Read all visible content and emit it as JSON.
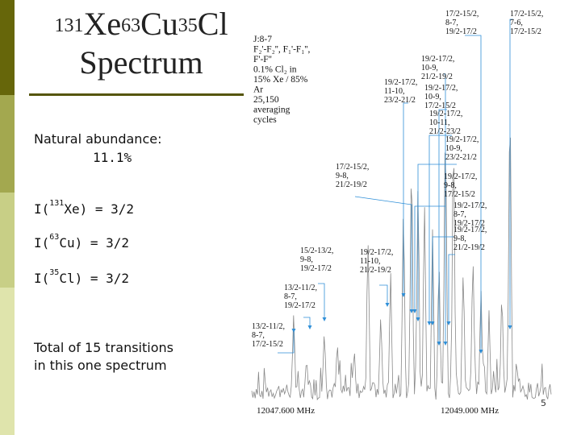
{
  "slide": {
    "title": {
      "iso1_mass": "131",
      "iso1_sym": "Xe",
      "iso2_mass": "63",
      "iso2_sym": "Cu",
      "iso3_mass": "35",
      "iso3_sym": "Cl",
      "line2": "Spectrum"
    },
    "abundance_label": "Natural abundance:",
    "abundance_value": "11.1%",
    "spins": [
      {
        "prefix": "I(",
        "mass": "131",
        "rest": "Xe) = 3/2"
      },
      {
        "prefix": "I(",
        "mass": "63",
        "rest": "Cu) = 3/2"
      },
      {
        "prefix": "I(",
        "mass": "35",
        "rest": "Cl) = 3/2"
      }
    ],
    "summary_line1": "Total of 15 transitions",
    "summary_line2": "in this one spectrum",
    "slide_number": "5"
  },
  "spectrum": {
    "params": [
      "J:8-7",
      "F₂'-F₂'', F₁'-F₁'',",
      "F'-F''",
      "0.1% Cl₂ in",
      "15% Xe / 85%",
      "Ar",
      "25,150",
      "averaging",
      "cycles"
    ],
    "axis_left": "12047.600 MHz",
    "axis_right": "12049.000 MHz",
    "labels": [
      [
        "17/2-15/2,",
        "8-7,",
        "19/2-17/2"
      ],
      [
        "17/2-15/2,",
        "7-6,",
        "17/2-15/2"
      ],
      [
        "19/2-17/2,",
        "10-9,",
        "21/2-19/2"
      ],
      [
        "19/2-17/2,",
        "11-10,",
        "23/2-21/2"
      ],
      [
        "19/2-17/2,",
        "10-9,",
        "17/2-15/2"
      ],
      [
        "19/2-17/2,",
        "10-11,",
        "21/2-23/2"
      ],
      [
        "19/2-17/2,",
        "10-9,",
        "23/2-21/2"
      ],
      [
        "17/2-15/2,",
        "9-8,",
        "21/2-19/2"
      ],
      [
        "19/2-17/2,",
        "9-8,",
        "17/2-15/2"
      ],
      [
        "19/2-17/2,",
        "8-7,",
        "19/2-17/2"
      ],
      [
        "19/2-17/2,",
        "9-8,",
        "21/2-19/2"
      ],
      [
        "15/2-13/2,",
        "9-8,",
        "19/2-17/2"
      ],
      [
        "19/2-17/2,",
        "11-10,",
        "21/2-19/2"
      ],
      [
        "13/2-11/2,",
        "8-7,",
        "19/2-17/2"
      ],
      [
        "13/2-11/2,",
        "8-7,",
        "17/2-15/2"
      ]
    ]
  }
}
